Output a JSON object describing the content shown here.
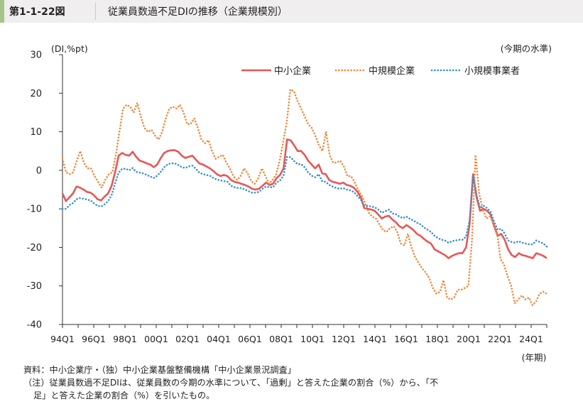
{
  "header": {
    "figure_number": "第1-1-22図",
    "title": "従業員数過不足DIの推移（企業規模別）"
  },
  "notes": {
    "source": "資料：中小企業庁・（独）中小企業基盤整備機構「中小企業景況調査」",
    "note_line1": "（注）従業員数過不足DIは、従業員数の今期の水準について、「過剰」と答えた企業の割合（%）から、「不",
    "note_line2": "足」と答えた企業の割合（%）を引いたもの。"
  },
  "colors": {
    "sme": "#e85656",
    "medium": "#ee8a3c",
    "small": "#3a8fd0"
  },
  "chart_data": {
    "type": "line",
    "title": "",
    "ylabel": "(DI,%pt)",
    "xlabel": "(年期)",
    "annotation_top_right": "(今期の水準)",
    "ylim": [
      -40,
      30
    ],
    "yticks": [
      30,
      20,
      10,
      0,
      -10,
      -20,
      -30,
      -40
    ],
    "grid": false,
    "legend": "top-right",
    "x_start": "1994Q1",
    "x_end": "2025Q1",
    "x_ticks": [
      {
        "label": "94Q1",
        "year": 1994
      },
      {
        "label": "96Q1",
        "year": 1996
      },
      {
        "label": "98Q1",
        "year": 1998
      },
      {
        "label": "00Q1",
        "year": 2000
      },
      {
        "label": "02Q1",
        "year": 2002
      },
      {
        "label": "04Q1",
        "year": 2004
      },
      {
        "label": "06Q1",
        "year": 2006
      },
      {
        "label": "08Q1",
        "year": 2008
      },
      {
        "label": "10Q1",
        "year": 2010
      },
      {
        "label": "12Q1",
        "year": 2012
      },
      {
        "label": "14Q1",
        "year": 2014
      },
      {
        "label": "16Q1",
        "year": 2016
      },
      {
        "label": "18Q1",
        "year": 2018
      },
      {
        "label": "20Q1",
        "year": 2020
      },
      {
        "label": "22Q1",
        "year": 2022
      },
      {
        "label": "24Q1",
        "year": 2024
      }
    ],
    "series": [
      {
        "name": "中小企業",
        "style": "solid",
        "color": "#e85656",
        "values": [
          -6,
          -8,
          -7,
          -6,
          -4.2,
          -4.5,
          -5,
          -5.6,
          -5.8,
          -6.5,
          -7.5,
          -7.8,
          -6.8,
          -6,
          -4,
          -0.5,
          3.8,
          4.5,
          4,
          3.8,
          4.8,
          3.5,
          2.5,
          2.2,
          1.8,
          1.5,
          0.8,
          1.5,
          3.2,
          4.5,
          5,
          5.2,
          5.2,
          4.8,
          3.8,
          3.2,
          3.5,
          3.8,
          2.8,
          1.8,
          1.5,
          1,
          0.5,
          -0.2,
          -1,
          -1.5,
          -1.2,
          -1.5,
          -2.5,
          -3,
          -3.2,
          -3.5,
          -3.8,
          -4.2,
          -4.8,
          -5,
          -4.8,
          -4,
          -3.2,
          -3.8,
          -3.5,
          -2,
          -1.2,
          0.5,
          8,
          7.8,
          6.5,
          5,
          5,
          4,
          2.5,
          1.5,
          0.5,
          1.5,
          -0.8,
          -1,
          -2.5,
          -3,
          -3.2,
          -3.5,
          -3.2,
          -3.8,
          -4,
          -4.5,
          -5.5,
          -7,
          -9.8,
          -10,
          -10.2,
          -10.5,
          -11.5,
          -12.5,
          -12,
          -11.8,
          -12.8,
          -13.5,
          -14.5,
          -15,
          -14.2,
          -14.8,
          -15.5,
          -16.5,
          -17,
          -17.8,
          -18.5,
          -19,
          -20.5,
          -21,
          -21.5,
          -22,
          -22.8,
          -22.2,
          -21.8,
          -21.5,
          -21.5,
          -20,
          -14,
          -1,
          -7,
          -10.5,
          -10,
          -10.5,
          -11.5,
          -14.5,
          -17,
          -16.5,
          -18,
          -20.5,
          -22,
          -22.5,
          -21.5,
          -22,
          -22.2,
          -22.5,
          -22.8,
          -21.5,
          -21.8,
          -22.2,
          -22.8
        ]
      },
      {
        "name": "中規模企業",
        "style": "dotted",
        "color": "#ee8a3c",
        "values": [
          3,
          -0.5,
          -1,
          -0.5,
          2.5,
          5,
          2,
          0.5,
          0.5,
          -1.5,
          -3,
          -4.5,
          -2.5,
          -1,
          -0.5,
          4,
          10,
          16,
          17,
          16.5,
          15,
          17.5,
          14,
          11,
          10,
          10.5,
          9,
          8,
          10,
          13.5,
          16,
          16.5,
          16,
          17,
          15,
          12,
          12,
          13.5,
          11,
          8,
          7,
          7.8,
          5,
          3,
          3.5,
          4,
          2,
          0.5,
          -1.5,
          -2.5,
          -1.5,
          0.5,
          -0.8,
          -2.8,
          -3.5,
          -2,
          0.5,
          -1.5,
          -3.5,
          -2.5,
          -1,
          2.5,
          7.5,
          12.5,
          21,
          20.5,
          18,
          16,
          14,
          12,
          11,
          9,
          6.5,
          5,
          10,
          4,
          2,
          2,
          2.5,
          1,
          -1.5,
          -1.5,
          -3,
          -5,
          -6.5,
          -8.5,
          -11,
          -12,
          -12.5,
          -14,
          -15.5,
          -16,
          -15,
          -14.5,
          -16,
          -19,
          -19.5,
          -16.5,
          -20,
          -22.5,
          -24,
          -25.5,
          -26.5,
          -28,
          -30.5,
          -32,
          -31.5,
          -28.5,
          -33,
          -33.5,
          -33,
          -31,
          -31,
          -30.5,
          -30,
          -18,
          4,
          -6,
          -10,
          -12.5,
          -12,
          -13.5,
          -16,
          -23,
          -24.5,
          -27.5,
          -30,
          -34.5,
          -33.5,
          -32.5,
          -33.5,
          -33,
          -35,
          -34,
          -32,
          -31.5,
          -32
        ]
      },
      {
        "name": "小規模事業者",
        "style": "dotted",
        "color": "#3a8fd0",
        "values": [
          -10,
          -10,
          -9,
          -8.5,
          -7.5,
          -7.2,
          -7.4,
          -7.6,
          -7.8,
          -8.6,
          -9.2,
          -9.4,
          -8.8,
          -8,
          -6.4,
          -3.4,
          -0.6,
          0.4,
          0.4,
          0,
          0.6,
          -0.4,
          -0.6,
          -0.8,
          -1.2,
          -1.6,
          -2,
          -1.4,
          -0.4,
          0.8,
          1.6,
          1.8,
          1.8,
          1.4,
          0.8,
          0.6,
          1,
          1.2,
          0.4,
          -0.6,
          -1,
          -1.2,
          -1.4,
          -2,
          -2.4,
          -2.6,
          -2.8,
          -3,
          -4,
          -4.4,
          -4.6,
          -4.6,
          -5,
          -5.4,
          -5.8,
          -5.8,
          -5.6,
          -4.8,
          -4.2,
          -4.4,
          -4.4,
          -3.2,
          -2.6,
          -1.4,
          3.5,
          3.4,
          2.4,
          1.6,
          1.6,
          0.8,
          -0.6,
          -1.4,
          -1.8,
          -1,
          -2.8,
          -3,
          -3.8,
          -4.2,
          -4.6,
          -4.8,
          -4.6,
          -5,
          -5.2,
          -5.6,
          -6.6,
          -7.6,
          -9.2,
          -9.2,
          -9.4,
          -9.6,
          -10.2,
          -11,
          -10.6,
          -10.2,
          -11.2,
          -11.4,
          -12,
          -12.4,
          -12,
          -12.6,
          -13,
          -13.6,
          -14,
          -14.8,
          -15.4,
          -16,
          -17,
          -17.6,
          -18,
          -18.2,
          -18.8,
          -18.4,
          -18.2,
          -18,
          -18,
          -17.2,
          -13,
          -1.4,
          -6.4,
          -9.8,
          -9.2,
          -9.8,
          -10.8,
          -13.4,
          -15.4,
          -15.2,
          -16.4,
          -18.2,
          -18.6,
          -18.8,
          -18.4,
          -18.8,
          -19,
          -19.2,
          -19.2,
          -18.2,
          -18.6,
          -19,
          -19.8
        ]
      }
    ]
  }
}
